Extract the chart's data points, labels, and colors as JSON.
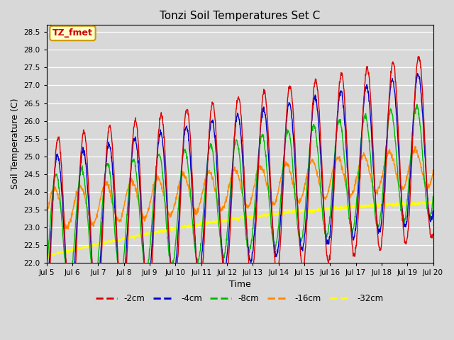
{
  "title": "Tonzi Soil Temperatures Set C",
  "xlabel": "Time",
  "ylabel": "Soil Temperature (C)",
  "ylim": [
    22.0,
    28.7
  ],
  "xlim": [
    0,
    360
  ],
  "bg_color": "#d8d8d8",
  "plot_bg_color": "#d8d8d8",
  "annotation_text": "TZ_fmet",
  "annotation_bg": "#ffffcc",
  "annotation_border": "#cc9900",
  "annotation_text_color": "#cc0000",
  "series_colors": {
    "-2cm": "#dd0000",
    "-4cm": "#0000cc",
    "-8cm": "#00bb00",
    "-16cm": "#ff8800",
    "-32cm": "#ffff00"
  },
  "legend_entries": [
    "-2cm",
    "-4cm",
    "-8cm",
    "-16cm",
    "-32cm"
  ],
  "x_tick_labels": [
    "Jul 5",
    "Jul 6",
    "Jul 7",
    "Jul 8",
    "Jul 9",
    "Jul 10",
    "Jul 11",
    "Jul 12",
    "Jul 13",
    "Jul 14",
    "Jul 15",
    "Jul 16",
    "Jul 17",
    "Jul 18",
    "Jul 19",
    "Jul 20"
  ],
  "x_tick_positions": [
    0,
    24,
    48,
    72,
    96,
    120,
    144,
    168,
    192,
    216,
    240,
    264,
    288,
    312,
    336,
    360
  ],
  "n_points": 1441,
  "period_hours": 24,
  "amp_2cm": 2.6,
  "amp_4cm": 2.1,
  "amp_8cm": 1.6,
  "amp_16cm": 0.55,
  "mean_start": 22.85,
  "mean_end": 25.3,
  "mean_16cm_start": 23.5,
  "mean_16cm_end": 24.7,
  "mean_32cm_start": 22.2,
  "mean_32cm_end": 23.7,
  "phase_2cm": -1.2,
  "phase_4cm": -1.05,
  "phase_8cm": -0.7,
  "phase_16cm": -0.3
}
